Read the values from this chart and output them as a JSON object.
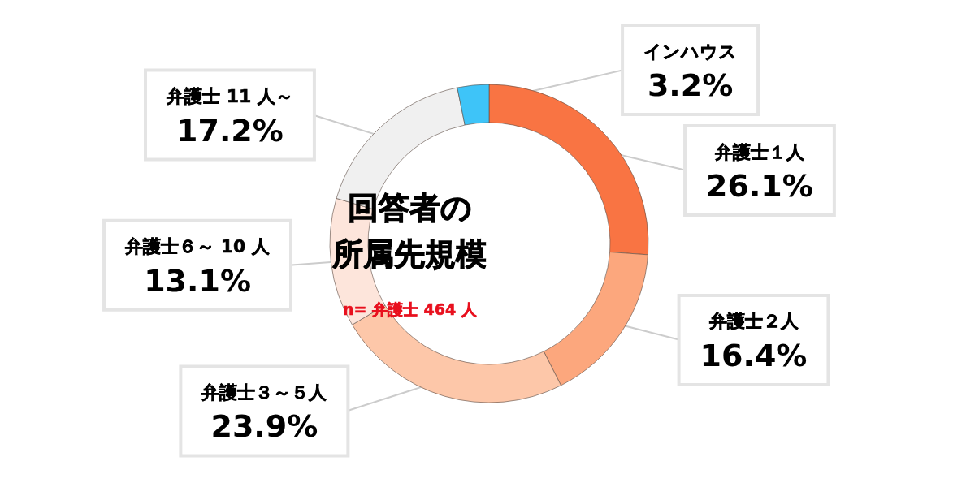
{
  "chart_data": {
    "type": "donut",
    "title": "回答者の所属先規模",
    "subtitle": "n= 弁護士 464 人",
    "categories": [
      "弁護士１人",
      "弁護士２人",
      "弁護士３～５人",
      "弁護士６～ 10 人",
      "弁護士 11 人～",
      "インハウス"
    ],
    "values": [
      26.1,
      16.4,
      23.9,
      13.1,
      17.2,
      3.2
    ],
    "colors": [
      "#f97443",
      "#fca77d",
      "#fdc7a9",
      "#fde5db",
      "#f0f0f0",
      "#3ec4f8"
    ],
    "value_labels": [
      "26.1%",
      "16.4%",
      "23.9%",
      "13.1%",
      "17.2%",
      "3.2%"
    ]
  }
}
